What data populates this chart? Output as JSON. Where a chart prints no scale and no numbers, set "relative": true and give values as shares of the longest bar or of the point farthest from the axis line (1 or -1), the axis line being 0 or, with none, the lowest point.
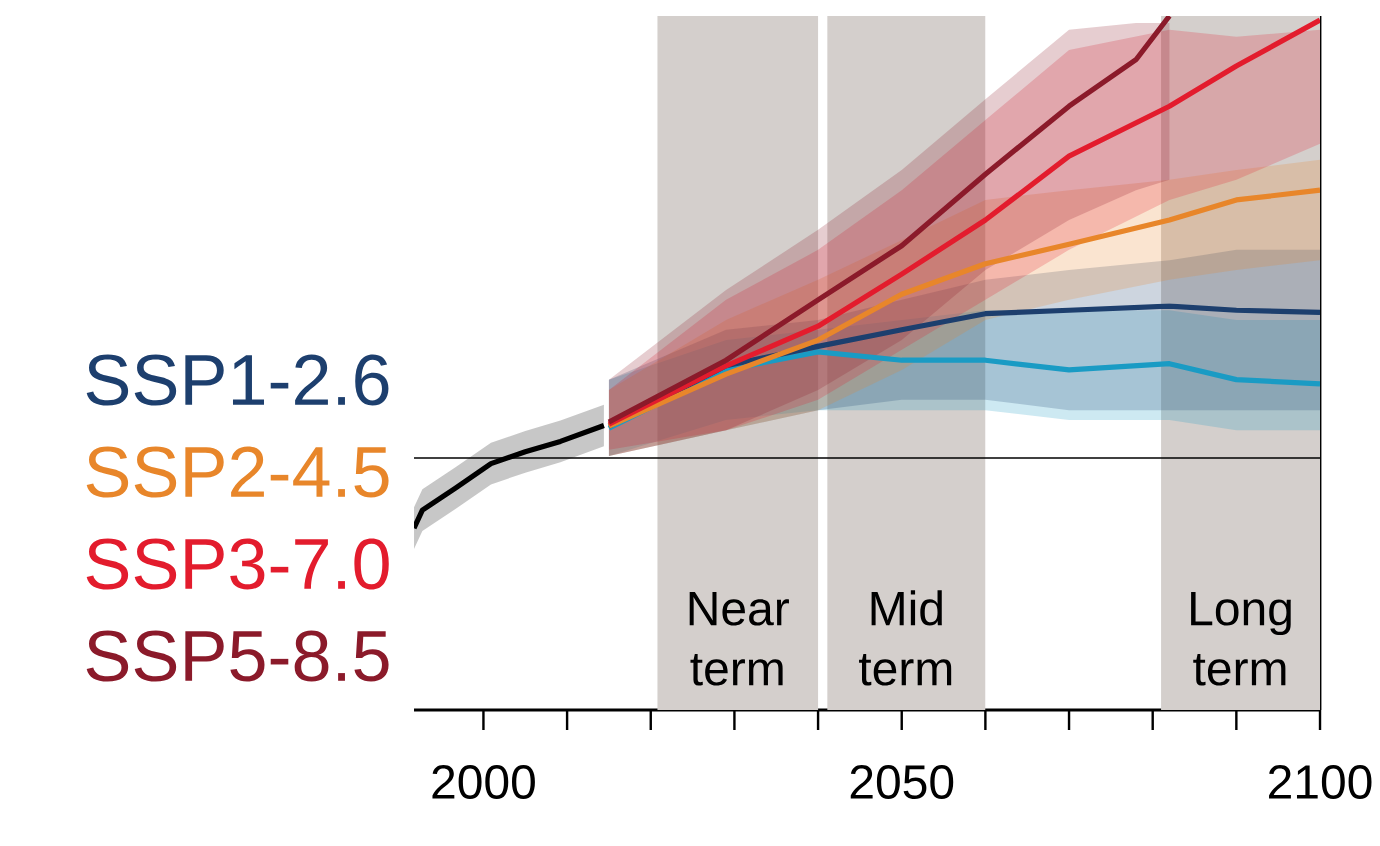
{
  "chart_data": {
    "type": "line",
    "relative": true,
    "xlim": [
      1991.7,
      2100
    ],
    "xticks": [
      2000,
      {
        "value": 2010,
        "label": null
      },
      {
        "value": 2020,
        "label": null
      },
      {
        "value": 2030,
        "label": null
      },
      {
        "value": 2040,
        "label": null
      },
      2050,
      {
        "value": 2060,
        "label": null
      },
      {
        "value": 2070,
        "label": null
      },
      {
        "value": 2080,
        "label": null
      },
      {
        "value": 2090,
        "label": null
      },
      2100
    ],
    "tick_labels": "x",
    "grid": false,
    "legend": "left",
    "marker": "none",
    "line_style": "solid",
    "series": [
      {
        "color": "#000000",
        "x": [
          1991.7,
          1992.7,
          1996.7,
          2000.9,
          2005,
          2009.2,
          2014.4
        ],
        "values": [
          0.262,
          0.288,
          0.32,
          0.355,
          0.372,
          0.387,
          0.41
        ],
        "lower": [
          0.232,
          0.258,
          0.29,
          0.325,
          0.342,
          0.357,
          0.38
        ],
        "upper": [
          0.292,
          0.318,
          0.35,
          0.385,
          0.402,
          0.417,
          0.44
        ]
      },
      {
        "color": "#1a9bc4",
        "x": [
          2015,
          2029,
          2040,
          2050,
          2060,
          2070,
          2082,
          2090,
          2100
        ],
        "values": [
          0.406,
          0.49,
          0.516,
          0.504,
          0.504,
          0.49,
          0.499,
          0.476,
          0.47
        ],
        "lower": [
          0.366,
          0.418,
          0.432,
          0.432,
          0.432,
          0.418,
          0.418,
          0.403,
          0.403
        ],
        "upper": [
          0.476,
          0.533,
          0.548,
          0.562,
          0.576,
          0.576,
          0.576,
          0.562,
          0.562
        ]
      },
      {
        "name": "SSP1-2.6",
        "color": "#1d3f6e",
        "x": [
          2015,
          2029,
          2040,
          2050,
          2060,
          2070,
          2082,
          2090,
          2100
        ],
        "values": [
          0.409,
          0.496,
          0.524,
          0.548,
          0.571,
          0.576,
          0.582,
          0.576,
          0.573
        ],
        "lower": [
          0.366,
          0.403,
          0.432,
          0.447,
          0.447,
          0.432,
          0.432,
          0.432,
          0.432
        ],
        "upper": [
          0.476,
          0.548,
          0.562,
          0.591,
          0.62,
          0.634,
          0.648,
          0.663,
          0.663
        ]
      },
      {
        "name": "SSP2-4.5",
        "color": "#e8862a",
        "x": [
          2015,
          2029,
          2040,
          2050,
          2060,
          2070,
          2082,
          2090,
          2100
        ],
        "values": [
          0.409,
          0.484,
          0.533,
          0.599,
          0.643,
          0.671,
          0.706,
          0.735,
          0.749
        ],
        "lower": [
          0.366,
          0.403,
          0.432,
          0.49,
          0.562,
          0.591,
          0.62,
          0.634,
          0.648
        ],
        "upper": [
          0.461,
          0.562,
          0.62,
          0.677,
          0.735,
          0.749,
          0.764,
          0.778,
          0.793
        ]
      },
      {
        "name": "SSP3-7.0",
        "color": "#e31c2d",
        "x": [
          2015,
          2029,
          2040,
          2050,
          2060,
          2070,
          2082,
          2090,
          2100
        ],
        "values": [
          0.412,
          0.496,
          0.553,
          0.628,
          0.706,
          0.798,
          0.87,
          0.928,
          0.994
        ],
        "lower": [
          0.375,
          0.403,
          0.447,
          0.519,
          0.591,
          0.663,
          0.735,
          0.764,
          0.816
        ],
        "upper": [
          0.461,
          0.591,
          0.663,
          0.749,
          0.85,
          0.951,
          0.98,
          0.97,
          0.98
        ]
      },
      {
        "name": "SSP5-8.5",
        "color": "#8b1a2a",
        "x": [
          2015,
          2029,
          2040,
          2050,
          2060,
          2070,
          2078,
          2082
        ],
        "values": [
          0.415,
          0.504,
          0.591,
          0.669,
          0.772,
          0.87,
          0.937,
          1.0
        ],
        "lower": [
          0.366,
          0.403,
          0.461,
          0.533,
          0.634,
          0.706,
          0.749,
          0.764
        ],
        "upper": [
          0.476,
          0.605,
          0.692,
          0.778,
          0.88,
          0.98,
          0.99,
          0.99
        ]
      }
    ],
    "ref_lines": [
      {
        "axis": "y",
        "value": 0.363,
        "color": "#000000"
      }
    ],
    "bands": [
      {
        "axis": "x",
        "from": 2020.8,
        "to": 2040,
        "label": "Near term",
        "color": "#d4cfcc"
      },
      {
        "axis": "x",
        "from": 2041.1,
        "to": 2060,
        "label": "Mid term",
        "color": "#d4cfcc"
      },
      {
        "axis": "x",
        "from": 2081,
        "to": 2100,
        "label": "Long term",
        "color": "#d4cfcc"
      }
    ]
  }
}
